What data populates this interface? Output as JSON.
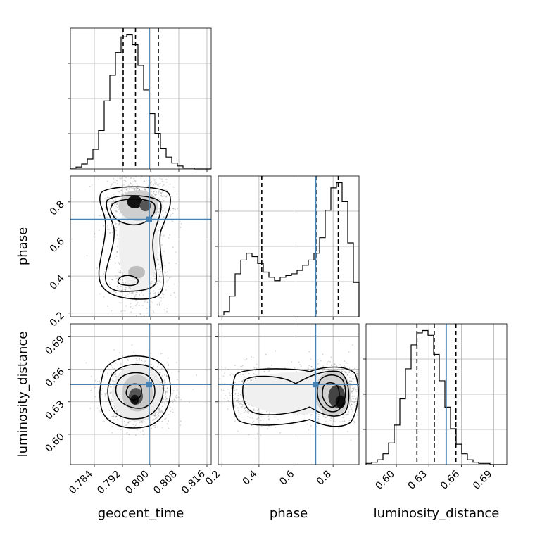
{
  "chart_data": {
    "type": "corner",
    "parameters": [
      "geocent_time",
      "phase",
      "luminosity_distance"
    ],
    "truths": {
      "geocent_time": 0.7996,
      "phase": 0.706,
      "luminosity_distance": 0.646
    },
    "quantiles": {
      "geocent_time": [
        0.7922,
        0.7957,
        0.8022
      ],
      "phase": [
        0.415,
        0.708,
        0.828
      ],
      "luminosity_distance": [
        0.619,
        0.635,
        0.655
      ]
    },
    "ranges": {
      "geocent_time": [
        0.7772,
        0.8172
      ],
      "phase": [
        0.18,
        0.94
      ],
      "luminosity_distance": [
        0.572,
        0.702
      ]
    },
    "ticks": {
      "geocent_time": {
        "values": [
          0.784,
          0.792,
          0.8,
          0.808,
          0.816
        ],
        "labels": [
          "0.784",
          "0.792",
          "0.800",
          "0.808",
          "0.816"
        ]
      },
      "phase": {
        "values": [
          0.2,
          0.4,
          0.6,
          0.8
        ],
        "labels": [
          "0.2",
          "0.4",
          "0.6",
          "0.8"
        ]
      },
      "luminosity_distance": {
        "values": [
          0.6,
          0.63,
          0.66,
          0.69
        ],
        "labels": [
          "0.60",
          "0.63",
          "0.66",
          "0.69"
        ]
      }
    },
    "histograms": {
      "geocent_time": [
        1,
        2,
        5,
        10,
        20,
        39,
        69,
        95,
        118,
        134,
        136,
        126,
        105,
        80,
        56,
        36,
        21,
        12,
        6,
        3,
        1,
        1,
        0,
        0,
        0
      ],
      "phase": [
        1,
        3,
        12,
        25,
        33,
        37,
        35,
        31,
        26,
        23,
        21,
        23,
        24,
        25,
        27,
        30,
        33,
        37,
        46,
        62,
        75,
        78,
        67,
        43,
        20
      ],
      "luminosity_distance": [
        1,
        2,
        4,
        9,
        18,
        33,
        55,
        80,
        100,
        110,
        112,
        108,
        92,
        70,
        48,
        30,
        17,
        9,
        4,
        2,
        1,
        1,
        0,
        0,
        0
      ]
    },
    "grid": true,
    "truth_color": "#4682b4",
    "line_color": "#000000"
  }
}
